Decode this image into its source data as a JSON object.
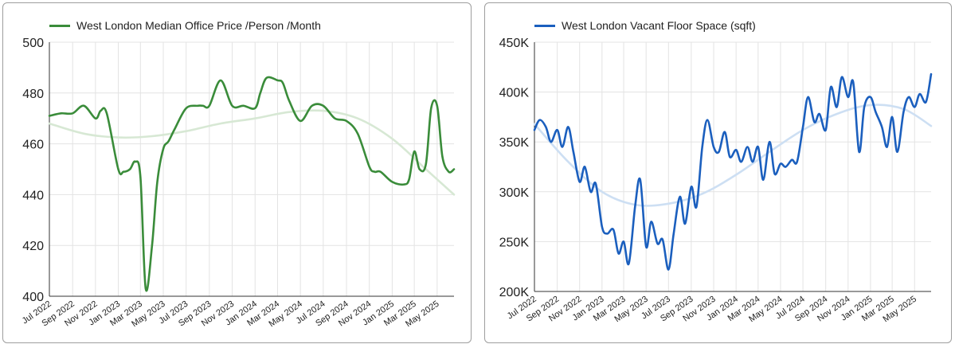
{
  "charts": [
    {
      "chart_data": {
        "type": "line",
        "series": [
          {
            "name": "West London Median Office Price /Person /Month",
            "x": [
              "2022-07-01",
              "2022-08-01",
              "2022-09-01",
              "2022-10-01",
              "2022-11-01",
              "2022-11-15",
              "2022-12-01",
              "2023-01-01",
              "2023-01-15",
              "2023-02-01",
              "2023-02-15",
              "2023-03-01",
              "2023-03-15",
              "2023-04-01",
              "2023-04-15",
              "2023-05-01",
              "2023-05-15",
              "2023-06-01",
              "2023-07-01",
              "2023-08-01",
              "2023-08-15",
              "2023-09-01",
              "2023-10-01",
              "2023-11-01",
              "2023-12-01",
              "2024-01-01",
              "2024-01-15",
              "2024-02-01",
              "2024-03-01",
              "2024-03-15",
              "2024-04-01",
              "2024-05-01",
              "2024-06-01",
              "2024-07-01",
              "2024-08-01",
              "2024-09-01",
              "2024-10-01",
              "2024-11-01",
              "2024-11-15",
              "2024-12-01",
              "2025-01-01",
              "2025-02-01",
              "2025-02-15",
              "2025-03-01",
              "2025-03-15",
              "2025-04-01",
              "2025-04-15",
              "2025-05-01",
              "2025-05-15",
              "2025-06-01",
              "2025-06-15"
            ],
            "values": [
              471,
              472,
              472,
              475,
              470,
              473,
              472,
              450,
              449,
              450,
              453,
              447,
              403,
              420,
              445,
              458,
              461,
              466,
              474,
              475,
              475,
              475,
              485,
              475,
              475,
              474,
              480,
              486,
              485,
              484,
              477,
              469,
              475,
              475,
              470,
              469,
              464,
              451,
              449,
              449,
              445,
              444,
              446,
              457,
              450,
              452,
              474,
              475,
              455,
              449,
              450
            ],
            "color": "#3a8c3a"
          },
          {
            "name": "",
            "x": [
              "2022-07-01",
              "2022-10-01",
              "2023-01-01",
              "2023-04-01",
              "2023-07-01",
              "2023-10-01",
              "2024-01-01",
              "2024-04-01",
              "2024-07-01",
              "2024-10-01",
              "2025-01-01",
              "2025-04-01",
              "2025-06-15"
            ],
            "values": [
              468,
              464,
              462.5,
              463,
              465,
              468,
              470,
              472.5,
              473,
              470,
              462,
              450,
              440
            ],
            "color": "#d7e8d4"
          }
        ],
        "xlabel": "",
        "ylabel": "",
        "ylim": [
          400,
          500
        ],
        "yticks": [
          400,
          420,
          440,
          460,
          480,
          500
        ],
        "ytick_labels": [
          "400",
          "420",
          "440",
          "460",
          "480",
          "500"
        ],
        "xlim": [
          "2022-07-01",
          "2025-06-15"
        ],
        "xticks": [
          "2022-07-01",
          "2022-09-01",
          "2022-11-01",
          "2023-01-01",
          "2023-03-01",
          "2023-05-01",
          "2023-07-01",
          "2023-09-01",
          "2023-11-01",
          "2024-01-01",
          "2024-03-01",
          "2024-05-01",
          "2024-07-01",
          "2024-09-01",
          "2024-11-01",
          "2025-01-01",
          "2025-03-01",
          "2025-05-01"
        ],
        "xtick_labels": [
          "Jul 2022",
          "Sep 2022",
          "Nov 2022",
          "Jan 2023",
          "Mar 2023",
          "May 2023",
          "Jul 2023",
          "Sep 2023",
          "Nov 2023",
          "Jan 2024",
          "Mar 2024",
          "May 2024",
          "Jul 2024",
          "Sep 2024",
          "Nov 2024",
          "Jan 2025",
          "Mar 2025",
          "May 2025"
        ],
        "grid": true,
        "legend": "top-left"
      }
    },
    {
      "chart_data": {
        "type": "line",
        "series": [
          {
            "name": "West London Vacant Floor Space (sqft)",
            "x": [
              "2022-07-01",
              "2022-07-15",
              "2022-08-01",
              "2022-08-15",
              "2022-09-01",
              "2022-09-15",
              "2022-10-01",
              "2022-10-15",
              "2022-11-01",
              "2022-11-15",
              "2022-12-01",
              "2022-12-15",
              "2023-01-01",
              "2023-01-15",
              "2023-02-01",
              "2023-02-15",
              "2023-03-01",
              "2023-03-15",
              "2023-04-01",
              "2023-04-15",
              "2023-05-01",
              "2023-05-15",
              "2023-06-01",
              "2023-06-15",
              "2023-07-01",
              "2023-07-15",
              "2023-08-01",
              "2023-08-15",
              "2023-09-01",
              "2023-09-15",
              "2023-10-01",
              "2023-10-15",
              "2023-11-01",
              "2023-11-15",
              "2023-12-01",
              "2023-12-15",
              "2024-01-01",
              "2024-01-15",
              "2024-02-01",
              "2024-02-15",
              "2024-03-01",
              "2024-03-15",
              "2024-04-01",
              "2024-04-15",
              "2024-05-01",
              "2024-05-15",
              "2024-06-01",
              "2024-06-15",
              "2024-07-01",
              "2024-07-15",
              "2024-08-01",
              "2024-08-15",
              "2024-09-01",
              "2024-09-15",
              "2024-10-01",
              "2024-10-15",
              "2024-11-01",
              "2024-11-15",
              "2024-12-01",
              "2024-12-15",
              "2025-01-01",
              "2025-01-15",
              "2025-02-01",
              "2025-02-15",
              "2025-03-01",
              "2025-03-15",
              "2025-04-01",
              "2025-04-15",
              "2025-05-01",
              "2025-05-15",
              "2025-06-01",
              "2025-06-15"
            ],
            "values": [
              362000,
              372000,
              365000,
              350000,
              362000,
              345000,
              365000,
              340000,
              310000,
              325000,
              300000,
              308000,
              265000,
              258000,
              262000,
              238000,
              250000,
              228000,
              285000,
              312000,
              245000,
              270000,
              248000,
              252000,
              222000,
              258000,
              295000,
              268000,
              305000,
              285000,
              345000,
              372000,
              345000,
              340000,
              360000,
              335000,
              342000,
              330000,
              345000,
              330000,
              345000,
              312000,
              350000,
              318000,
              328000,
              325000,
              332000,
              330000,
              365000,
              395000,
              370000,
              378000,
              362000,
              405000,
              385000,
              415000,
              395000,
              410000,
              340000,
              385000,
              395000,
              380000,
              365000,
              345000,
              375000,
              340000,
              380000,
              395000,
              385000,
              398000,
              390000,
              418000
            ],
            "color": "#1b5fbe"
          },
          {
            "name": "",
            "x": [
              "2022-07-01",
              "2022-10-01",
              "2023-01-01",
              "2023-04-01",
              "2023-07-01",
              "2023-10-01",
              "2024-01-01",
              "2024-04-01",
              "2024-07-01",
              "2024-10-01",
              "2025-01-01",
              "2025-04-01",
              "2025-06-15"
            ],
            "values": [
              368000,
              330000,
              300000,
              287000,
              288000,
              298000,
              317000,
              340000,
              362000,
              378000,
              387000,
              383000,
              366000
            ],
            "color": "#cddff3"
          }
        ],
        "xlabel": "",
        "ylabel": "",
        "ylim": [
          200000,
          450000
        ],
        "yticks": [
          200000,
          250000,
          300000,
          350000,
          400000,
          450000
        ],
        "ytick_labels": [
          "200K",
          "250K",
          "300K",
          "350K",
          "400K",
          "450K"
        ],
        "xlim": [
          "2022-07-01",
          "2025-06-15"
        ],
        "xticks": [
          "2022-07-01",
          "2022-09-01",
          "2022-11-01",
          "2023-01-01",
          "2023-03-01",
          "2023-05-01",
          "2023-07-01",
          "2023-09-01",
          "2023-11-01",
          "2024-01-01",
          "2024-03-01",
          "2024-05-01",
          "2024-07-01",
          "2024-09-01",
          "2024-11-01",
          "2025-01-01",
          "2025-03-01",
          "2025-05-01"
        ],
        "xtick_labels": [
          "Jul 2022",
          "Sep 2022",
          "Nov 2022",
          "Jan 2023",
          "Mar 2023",
          "May 2023",
          "Jul 2023",
          "Sep 2023",
          "Nov 2023",
          "Jan 2024",
          "Mar 2024",
          "May 2024",
          "Jul 2024",
          "Sep 2024",
          "Nov 2024",
          "Jan 2025",
          "Mar 2025",
          "May 2025"
        ],
        "grid": true,
        "legend": "top-left"
      }
    }
  ]
}
